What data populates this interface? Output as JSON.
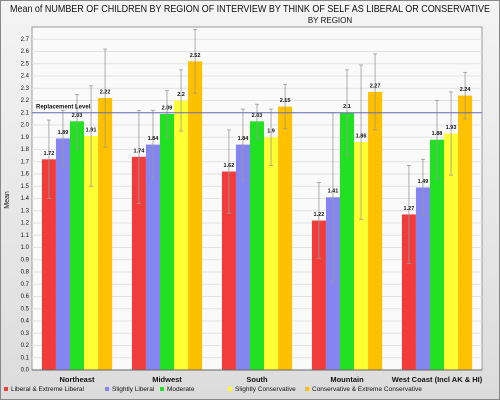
{
  "chart_data": {
    "type": "bar",
    "title": "Mean of NUMBER OF CHILDREN BY REGION OF INTERVIEW BY THINK OF SELF AS LIBERAL OR CONSERVATIVE",
    "subtitle": "BY REGION",
    "ylabel": "Mean",
    "categories": [
      "Northeast",
      "Midwest",
      "South",
      "Mountain",
      "West Coast (Incl AK & HI)"
    ],
    "series": [
      {
        "name": "Liberal & Extreme Liberal",
        "color": "#f23c3c",
        "values": [
          1.72,
          1.74,
          1.62,
          1.22,
          1.27
        ],
        "errors": [
          0.32,
          0.38,
          0.34,
          0.31,
          0.4
        ]
      },
      {
        "name": "Slightly Liberal",
        "color": "#8585f2",
        "values": [
          1.89,
          1.84,
          1.84,
          1.41,
          1.49
        ],
        "errors": [
          0.23,
          0.28,
          0.29,
          0.69,
          0.23
        ]
      },
      {
        "name": "Moderate",
        "color": "#22e022",
        "values": [
          2.03,
          2.09,
          2.03,
          2.1,
          1.88
        ],
        "errors": [
          0.22,
          0.19,
          0.14,
          0.35,
          0.32
        ]
      },
      {
        "name": "Slightly Conservative",
        "color": "#ffff33",
        "values": [
          1.91,
          2.2,
          1.9,
          1.86,
          1.93
        ],
        "errors": [
          0.41,
          0.25,
          0.23,
          0.63,
          0.34
        ]
      },
      {
        "name": "Conservative & Extreme Conservative",
        "color": "#ffc000",
        "values": [
          2.22,
          2.52,
          2.15,
          2.27,
          2.24
        ],
        "errors": [
          0.4,
          0.26,
          0.18,
          0.31,
          0.19
        ]
      }
    ],
    "reference_line": {
      "value": 2.1,
      "label": "Replacement Level",
      "color": "#6a6ab8"
    },
    "ylim": [
      0,
      2.8
    ],
    "yticks": [
      {
        "value": 0,
        "label": "0.0"
      },
      0.1,
      0.2,
      0.3,
      0.4,
      0.5,
      0.6,
      0.7,
      0.8,
      0.9,
      {
        "value": 1,
        "label": "1.0"
      },
      1.1,
      1.2,
      1.3,
      1.4,
      1.5,
      1.6,
      1.7,
      1.8,
      1.9,
      {
        "value": 2,
        "label": "2.0"
      },
      2.1,
      2.2,
      2.3,
      2.4,
      2.5,
      2.6,
      2.7
    ],
    "grid": true
  }
}
